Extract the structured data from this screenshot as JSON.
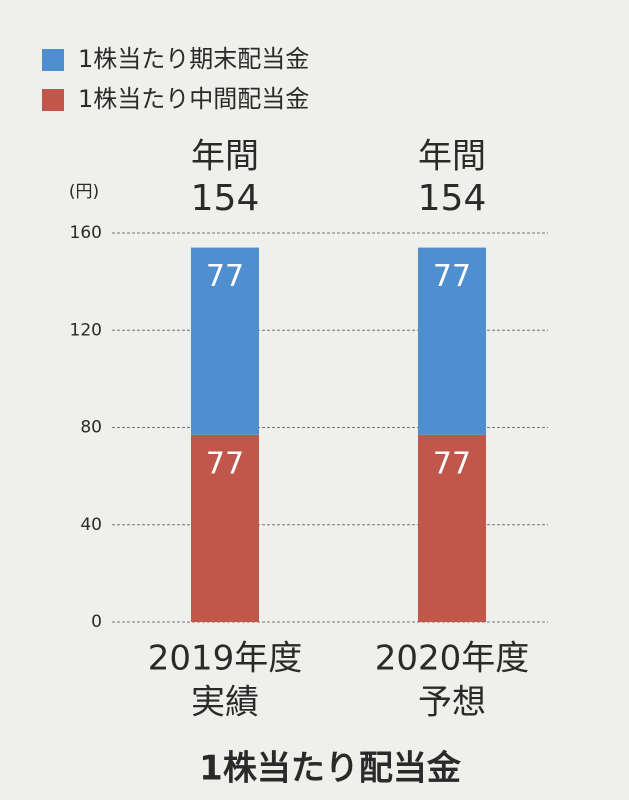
{
  "chart_data": {
    "type": "stacked-bar",
    "title": "1株当たり配当金",
    "unit": "(円)",
    "categories": [
      "2019年度",
      "2020年度"
    ],
    "category_sublabels": [
      "実績",
      "予想"
    ],
    "series": [
      {
        "name": "1株当たり中間配当金",
        "color": "#c0574a",
        "values": [
          77,
          77
        ]
      },
      {
        "name": "1株当たり期末配当金",
        "color": "#4f8fcf",
        "values": [
          77,
          77
        ]
      }
    ],
    "totals": {
      "label": "年間",
      "values": [
        154,
        154
      ]
    },
    "ylim": [
      0,
      160
    ],
    "yticks": [
      0,
      40,
      80,
      120,
      160
    ],
    "grid": true
  }
}
